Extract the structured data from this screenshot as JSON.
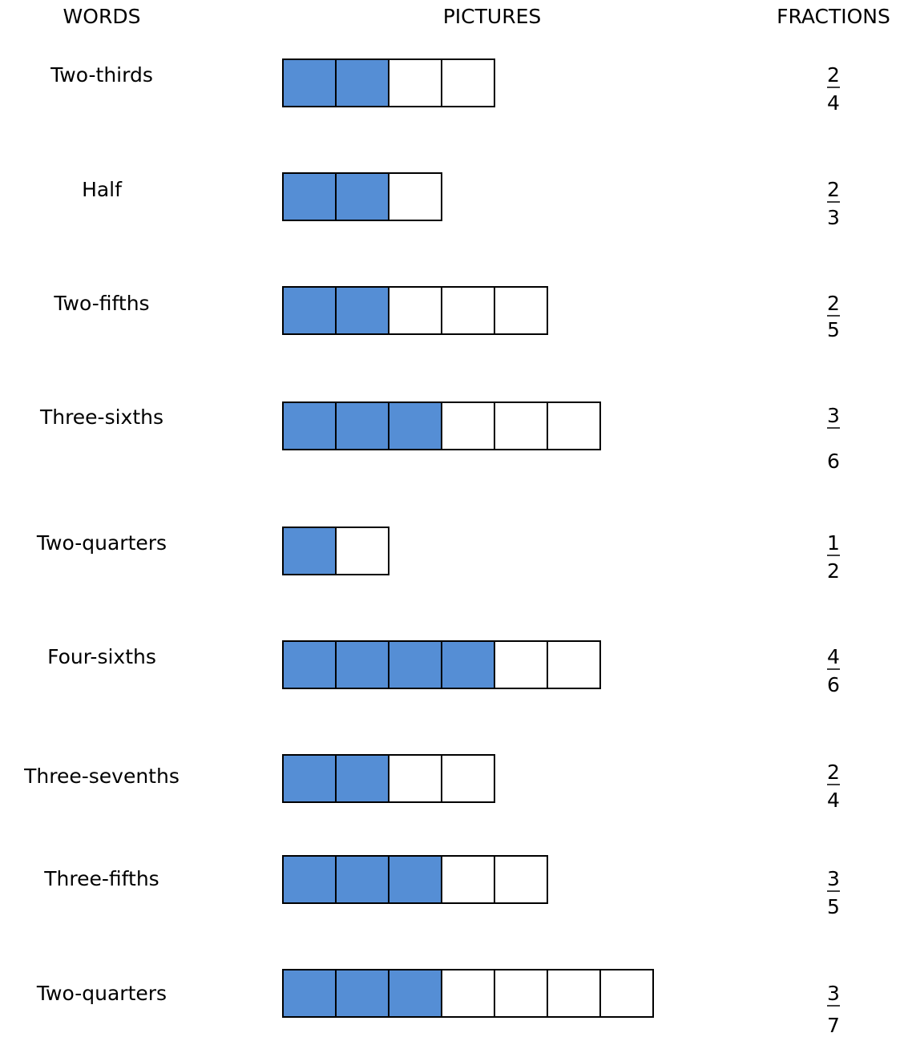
{
  "header": {
    "words": "WORDS",
    "pictures": "PICTURES",
    "fractions": "FRACTIONS"
  },
  "rows": [
    {
      "word": "Two-thirds",
      "picture": {
        "shaded": 2,
        "parts": 4
      },
      "fraction": {
        "numerator": 2,
        "denominator": 4
      }
    },
    {
      "word": "Half",
      "picture": {
        "shaded": 2,
        "parts": 3
      },
      "fraction": {
        "numerator": 2,
        "denominator": 3
      }
    },
    {
      "word": "Two-fifths",
      "picture": {
        "shaded": 2,
        "parts": 5
      },
      "fraction": {
        "numerator": 2,
        "denominator": 5
      }
    },
    {
      "word": "Three-sixths",
      "picture": {
        "shaded": 3,
        "parts": 6
      },
      "fraction": {
        "numerator": 3,
        "denominator": 6
      }
    },
    {
      "word": "Two-quarters",
      "picture": {
        "shaded": 1,
        "parts": 2
      },
      "fraction": {
        "numerator": 1,
        "denominator": 2
      }
    },
    {
      "word": "Four-sixths",
      "picture": {
        "shaded": 4,
        "parts": 6
      },
      "fraction": {
        "numerator": 4,
        "denominator": 6
      }
    },
    {
      "word": "Three-sevenths",
      "picture": {
        "shaded": 2,
        "parts": 4
      },
      "fraction": {
        "numerator": 2,
        "denominator": 4
      }
    },
    {
      "word": "Three-fifths",
      "picture": {
        "shaded": 3,
        "parts": 5
      },
      "fraction": {
        "numerator": 3,
        "denominator": 5
      }
    },
    {
      "word": "Two-quarters",
      "picture": {
        "shaded": 3,
        "parts": 7
      },
      "fraction": {
        "numerator": 3,
        "denominator": 7
      }
    }
  ]
}
